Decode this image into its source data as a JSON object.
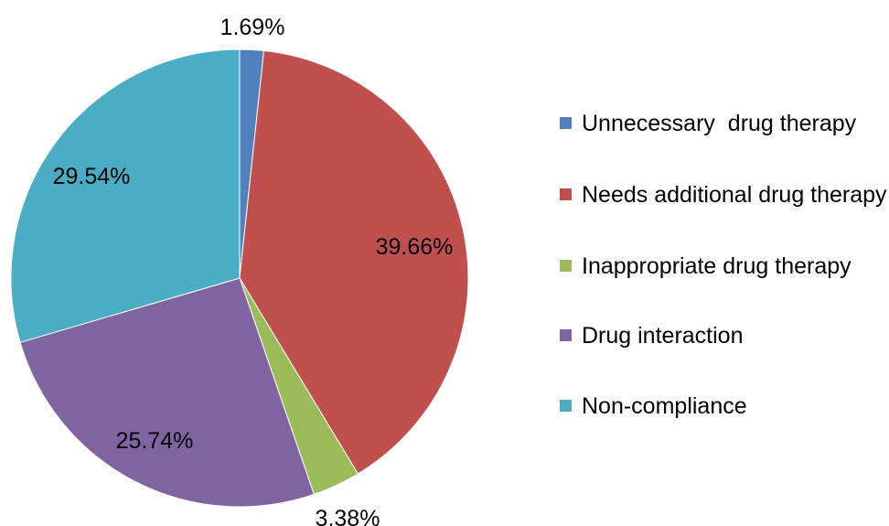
{
  "chart_data": {
    "type": "pie",
    "title": "",
    "start_angle_deg": 0,
    "direction": "clockwise",
    "legend_position": "right",
    "slices": [
      {
        "label": "Unnecessary  drug therapy",
        "value": 1.69,
        "value_label": "1.69%",
        "color": "#4f81bd"
      },
      {
        "label": "Needs additional drug therapy",
        "value": 39.66,
        "value_label": "39.66%",
        "color": "#c0504d"
      },
      {
        "label": "Inappropriate drug therapy",
        "value": 3.38,
        "value_label": "3.38%",
        "color": "#9bbb59"
      },
      {
        "label": "Drug interaction",
        "value": 25.74,
        "value_label": "25.74%",
        "color": "#8064a2"
      },
      {
        "label": "Non-compliance",
        "value": 29.54,
        "value_label": "29.54%",
        "color": "#4bacc6"
      }
    ]
  }
}
